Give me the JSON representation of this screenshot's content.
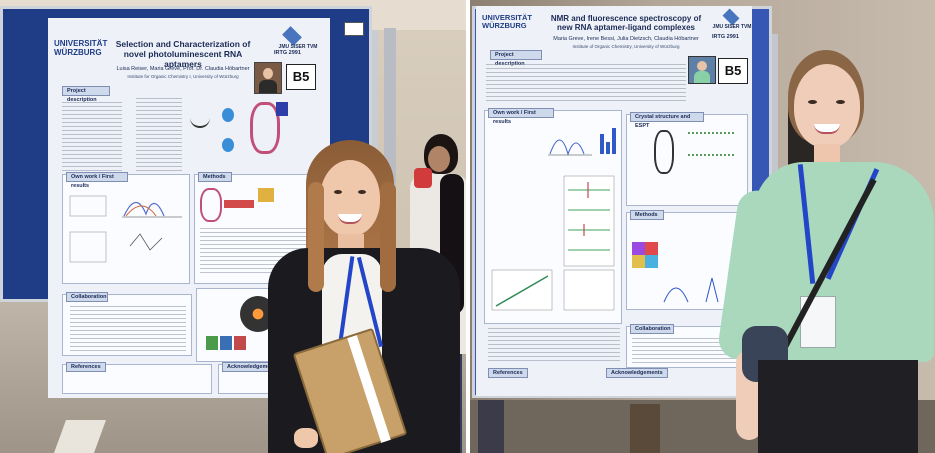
{
  "left_poster": {
    "university": "UNIVERSITÄT WÜRZBURG",
    "title": "Selection and Characterization of novel photoluminescent RNA aptamers",
    "authors": "Luisa Reiser, Maria Greve, Prof. Dr. Claudia Höbartner",
    "institution": "Institute for Organic Chemistry I, University of Würzburg",
    "org": "JMU SISER TVM",
    "irtg": "IRTG 2991",
    "board_number": "B5",
    "sections": {
      "description": "Project description",
      "work": "Own work / First results",
      "methods": "Methods",
      "collaboration": "Collaboration",
      "references": "References",
      "acknowledgements": "Acknowledgements"
    }
  },
  "right_poster": {
    "university": "UNIVERSITÄT WÜRZBURG",
    "title": "NMR and fluorescence spectroscopy of new RNA aptamer-ligand complexes",
    "authors": "Maria Greve, Irene Bessi, Julia Dietzsch, Claudia Höbartner",
    "institution": "Institute of Organic Chemistry, University of Würzburg",
    "org": "JMU SISER TVM",
    "irtg": "IRTG 2991",
    "board_number": "B5",
    "sections": {
      "description": "Project description",
      "work": "Own work / First results",
      "crystal": "Crystal structure and ESPT",
      "methods": "Methods",
      "collaboration": "Collaboration",
      "references": "References",
      "acknowledgements": "Acknowledgements"
    }
  },
  "colors": {
    "board": "#1f3c86",
    "poster": "#eef2f8",
    "jacket": "#1b1b1f",
    "lanyard": "#2346c8",
    "mint_top": "#a9d8bd"
  }
}
